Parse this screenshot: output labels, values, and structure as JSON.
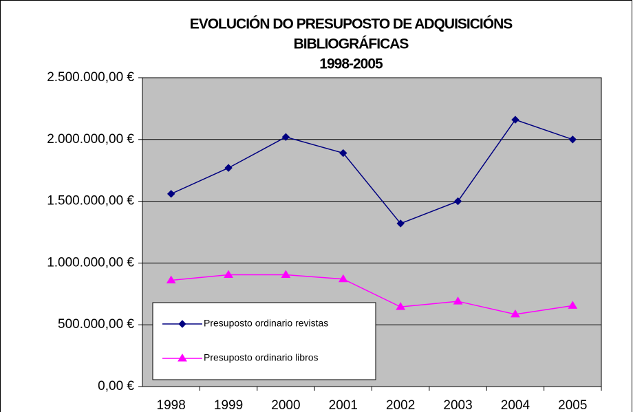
{
  "chart_data": {
    "type": "line",
    "title": [
      "EVOLUCIÓN DO PRESUPOSTO DE ADQUISICIÓNS",
      "BIBLIOGRÁFICAS",
      "1998-2005"
    ],
    "categories": [
      "1998",
      "1999",
      "2000",
      "2001",
      "2002",
      "2003",
      "2004",
      "2005"
    ],
    "series": [
      {
        "name": "Presuposto ordinario revistas",
        "color": "#000080",
        "marker": "diamond",
        "values": [
          1560000,
          1770000,
          2020000,
          1890000,
          1320000,
          1500000,
          2160000,
          2000000
        ]
      },
      {
        "name": "Presuposto ordinario libros",
        "color": "#ff00ff",
        "marker": "triangle",
        "values": [
          860000,
          905000,
          905000,
          870000,
          645000,
          690000,
          585000,
          655000
        ]
      }
    ],
    "ylim": [
      0,
      2500000
    ],
    "yticks": [
      {
        "value": 0,
        "label": "0,00 €"
      },
      {
        "value": 500000,
        "label": "500.000,00 €"
      },
      {
        "value": 1000000,
        "label": "1.000.000,00 €"
      },
      {
        "value": 1500000,
        "label": "1.500.000,00 €"
      },
      {
        "value": 2000000,
        "label": "2.000.000,00 €"
      },
      {
        "value": 2500000,
        "label": "2.500.000,00 €"
      }
    ],
    "grid": true,
    "legend": "lower left"
  }
}
